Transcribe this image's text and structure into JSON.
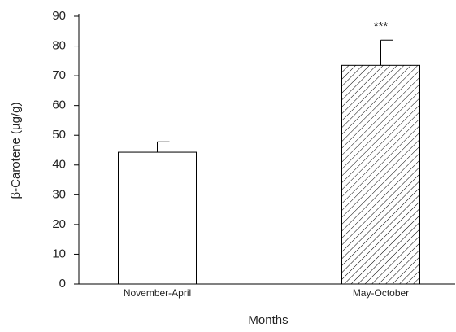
{
  "chart_data": {
    "type": "bar",
    "categories": [
      "November-April",
      "May-October"
    ],
    "values": [
      44.3,
      73.5
    ],
    "errors": [
      3.5,
      8.5
    ],
    "hatched": [
      false,
      true
    ],
    "color": "#ffffff",
    "annotation": "***",
    "x_label": "Months",
    "y_label": "β-Carotene (µg/g)",
    "ylim": [
      0,
      90
    ],
    "yticks": [
      0,
      10,
      20,
      30,
      40,
      50,
      60,
      70,
      80,
      90
    ]
  }
}
